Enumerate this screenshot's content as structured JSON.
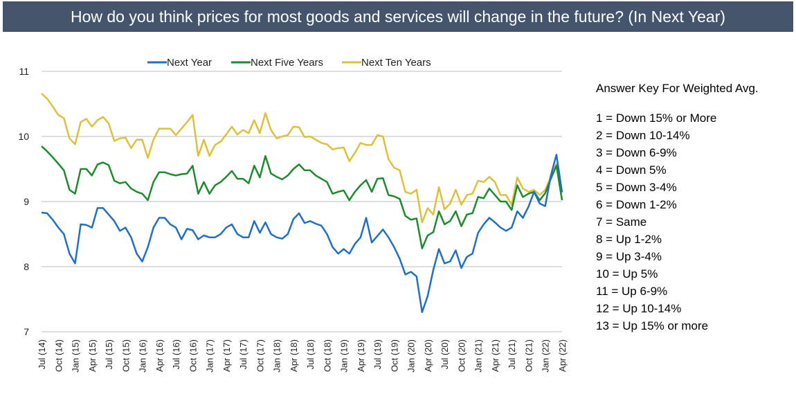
{
  "title": "How do you think prices for most goods and services will change in the future? (In Next Year)",
  "answer_key": {
    "heading": "Answer Key For Weighted Avg.",
    "items": [
      "1 = Down 15% or More",
      "2 = Down 10-14%",
      "3 = Down 6-9%",
      "4 = Down 5%",
      "5 = Down 3-4%",
      "6 = Down 1-2%",
      "7 = Same",
      "8 = Up 1-2%",
      "9 = Up 3-4%",
      "10 = Up 5%",
      "11 = Up 6-9%",
      "12 = Up 10-14%",
      "13 = Up 15% or more"
    ]
  },
  "chart_data": {
    "type": "line",
    "x_tick_labels": [
      "Jul (14)",
      "Oct (14)",
      "Jan (15)",
      "Apr (15)",
      "Jul (15)",
      "Oct (15)",
      "Jan (16)",
      "Apr (16)",
      "Jul (16)",
      "Oct (16)",
      "Jan (17)",
      "Apr (17)",
      "Jul (17)",
      "Oct (17)",
      "Jan (18)",
      "Apr (18)",
      "Jul (18)",
      "Oct (18)",
      "Jan (19)",
      "Apr (19)",
      "Jul (19)",
      "Oct (19)",
      "Jan (20)",
      "Apr (20)",
      "Jul (20)",
      "Oct (20)",
      "Jan (21)",
      "Apr (21)",
      "Jul (21)",
      "Oct (21)",
      "Jan (22)",
      "Apr (22)"
    ],
    "y_ticks": [
      7,
      8,
      9,
      10,
      11
    ],
    "ylim": [
      7,
      11
    ],
    "legend_position": "top",
    "grid": "horizontal",
    "series": [
      {
        "name": "Next Year",
        "color": "#1f6fc4",
        "values": [
          8.83,
          8.82,
          8.72,
          8.6,
          8.5,
          8.2,
          8.05,
          8.65,
          8.64,
          8.6,
          8.9,
          8.9,
          8.8,
          8.7,
          8.55,
          8.6,
          8.45,
          8.2,
          8.08,
          8.3,
          8.6,
          8.75,
          8.75,
          8.65,
          8.6,
          8.42,
          8.58,
          8.56,
          8.42,
          8.48,
          8.45,
          8.45,
          8.5,
          8.6,
          8.65,
          8.5,
          8.45,
          8.45,
          8.7,
          8.52,
          8.68,
          8.5,
          8.45,
          8.43,
          8.5,
          8.73,
          8.82,
          8.67,
          8.7,
          8.66,
          8.63,
          8.5,
          8.3,
          8.2,
          8.27,
          8.2,
          8.35,
          8.45,
          8.75,
          8.37,
          8.47,
          8.57,
          8.45,
          8.3,
          8.12,
          7.88,
          7.92,
          7.85,
          7.3,
          7.55,
          7.95,
          8.27,
          8.05,
          8.08,
          8.25,
          7.98,
          8.15,
          8.2,
          8.52,
          8.65,
          8.75,
          8.68,
          8.6,
          8.55,
          8.6,
          8.85,
          8.75,
          8.92,
          9.15,
          8.97,
          8.93,
          9.4,
          9.72,
          9.14
        ]
      },
      {
        "name": "Next Five Years",
        "color": "#1e8a2e",
        "values": [
          9.85,
          9.77,
          9.68,
          9.58,
          9.48,
          9.18,
          9.12,
          9.5,
          9.5,
          9.4,
          9.57,
          9.6,
          9.56,
          9.32,
          9.28,
          9.3,
          9.2,
          9.15,
          9.12,
          9.02,
          9.3,
          9.45,
          9.45,
          9.42,
          9.4,
          9.42,
          9.43,
          9.55,
          9.12,
          9.3,
          9.12,
          9.25,
          9.3,
          9.38,
          9.47,
          9.35,
          9.35,
          9.28,
          9.55,
          9.37,
          9.7,
          9.43,
          9.38,
          9.34,
          9.4,
          9.5,
          9.57,
          9.48,
          9.48,
          9.4,
          9.35,
          9.3,
          9.12,
          9.15,
          9.17,
          9.02,
          9.15,
          9.25,
          9.33,
          9.15,
          9.35,
          9.36,
          9.1,
          9.08,
          9.04,
          8.78,
          8.72,
          8.74,
          8.28,
          8.48,
          8.53,
          8.85,
          8.65,
          8.7,
          8.85,
          8.62,
          8.8,
          8.82,
          9.07,
          9.05,
          9.2,
          9.1,
          9.0,
          9.0,
          8.87,
          9.25,
          9.07,
          9.12,
          9.15,
          9.02,
          9.13,
          9.35,
          9.55,
          9.02
        ]
      },
      {
        "name": "Next Ten Years",
        "color": "#dcc13a",
        "values": [
          10.66,
          10.58,
          10.46,
          10.33,
          10.28,
          9.97,
          9.88,
          10.22,
          10.27,
          10.15,
          10.25,
          10.3,
          10.2,
          9.93,
          9.97,
          9.98,
          9.82,
          9.95,
          9.95,
          9.67,
          9.95,
          10.12,
          10.12,
          10.12,
          10.02,
          10.12,
          10.22,
          10.33,
          9.7,
          9.95,
          9.7,
          9.87,
          9.92,
          10.03,
          10.15,
          10.03,
          10.1,
          10.05,
          10.25,
          10.05,
          10.36,
          10.1,
          9.97,
          10.0,
          10.02,
          10.15,
          10.14,
          9.99,
          10.0,
          9.95,
          9.9,
          9.88,
          9.8,
          9.82,
          9.83,
          9.62,
          9.75,
          9.9,
          9.87,
          9.87,
          10.02,
          10.0,
          9.65,
          9.52,
          9.48,
          9.15,
          9.12,
          9.18,
          8.68,
          8.9,
          8.8,
          9.22,
          8.88,
          8.97,
          9.18,
          8.95,
          9.1,
          9.12,
          9.32,
          9.3,
          9.38,
          9.3,
          9.1,
          9.1,
          8.95,
          9.37,
          9.2,
          9.15,
          9.18,
          9.1,
          9.18,
          9.38,
          9.58,
          9.02
        ]
      }
    ]
  }
}
